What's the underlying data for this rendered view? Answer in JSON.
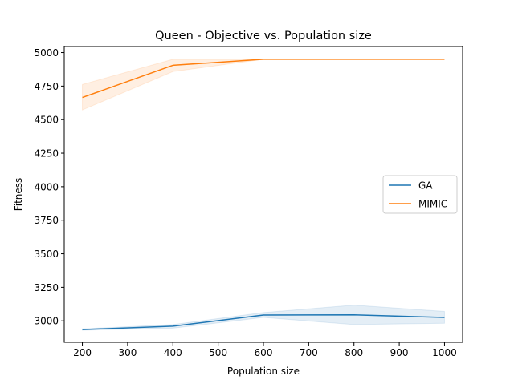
{
  "chart_data": {
    "type": "line",
    "title": "Queen - Objective vs. Population size",
    "xlabel": "Population size",
    "ylabel": "Fitness",
    "xlim": [
      160,
      1040
    ],
    "ylim": [
      2840,
      5045
    ],
    "x_ticks": [
      200,
      300,
      400,
      500,
      600,
      700,
      800,
      900,
      1000
    ],
    "y_ticks": [
      3000,
      3250,
      3500,
      3750,
      4000,
      4250,
      4500,
      4750,
      5000
    ],
    "grid": false,
    "legend_position": "center-right",
    "series": [
      {
        "name": "GA",
        "color": "#1f77b4",
        "x": [
          200,
          400,
          600,
          800,
          1000
        ],
        "y": [
          2935,
          2960,
          3043,
          3045,
          3025
        ],
        "ci_low": [
          2930,
          2945,
          3025,
          2972,
          2982
        ],
        "ci_high": [
          2940,
          2972,
          3062,
          3117,
          3070
        ]
      },
      {
        "name": "MIMIC",
        "color": "#ff7f0e",
        "x": [
          200,
          400,
          600,
          800,
          1000
        ],
        "y": [
          4665,
          4905,
          4950,
          4950,
          4950
        ],
        "ci_low": [
          4572,
          4858,
          4950,
          4950,
          4950
        ],
        "ci_high": [
          4762,
          4950,
          4950,
          4950,
          4950
        ]
      }
    ]
  }
}
